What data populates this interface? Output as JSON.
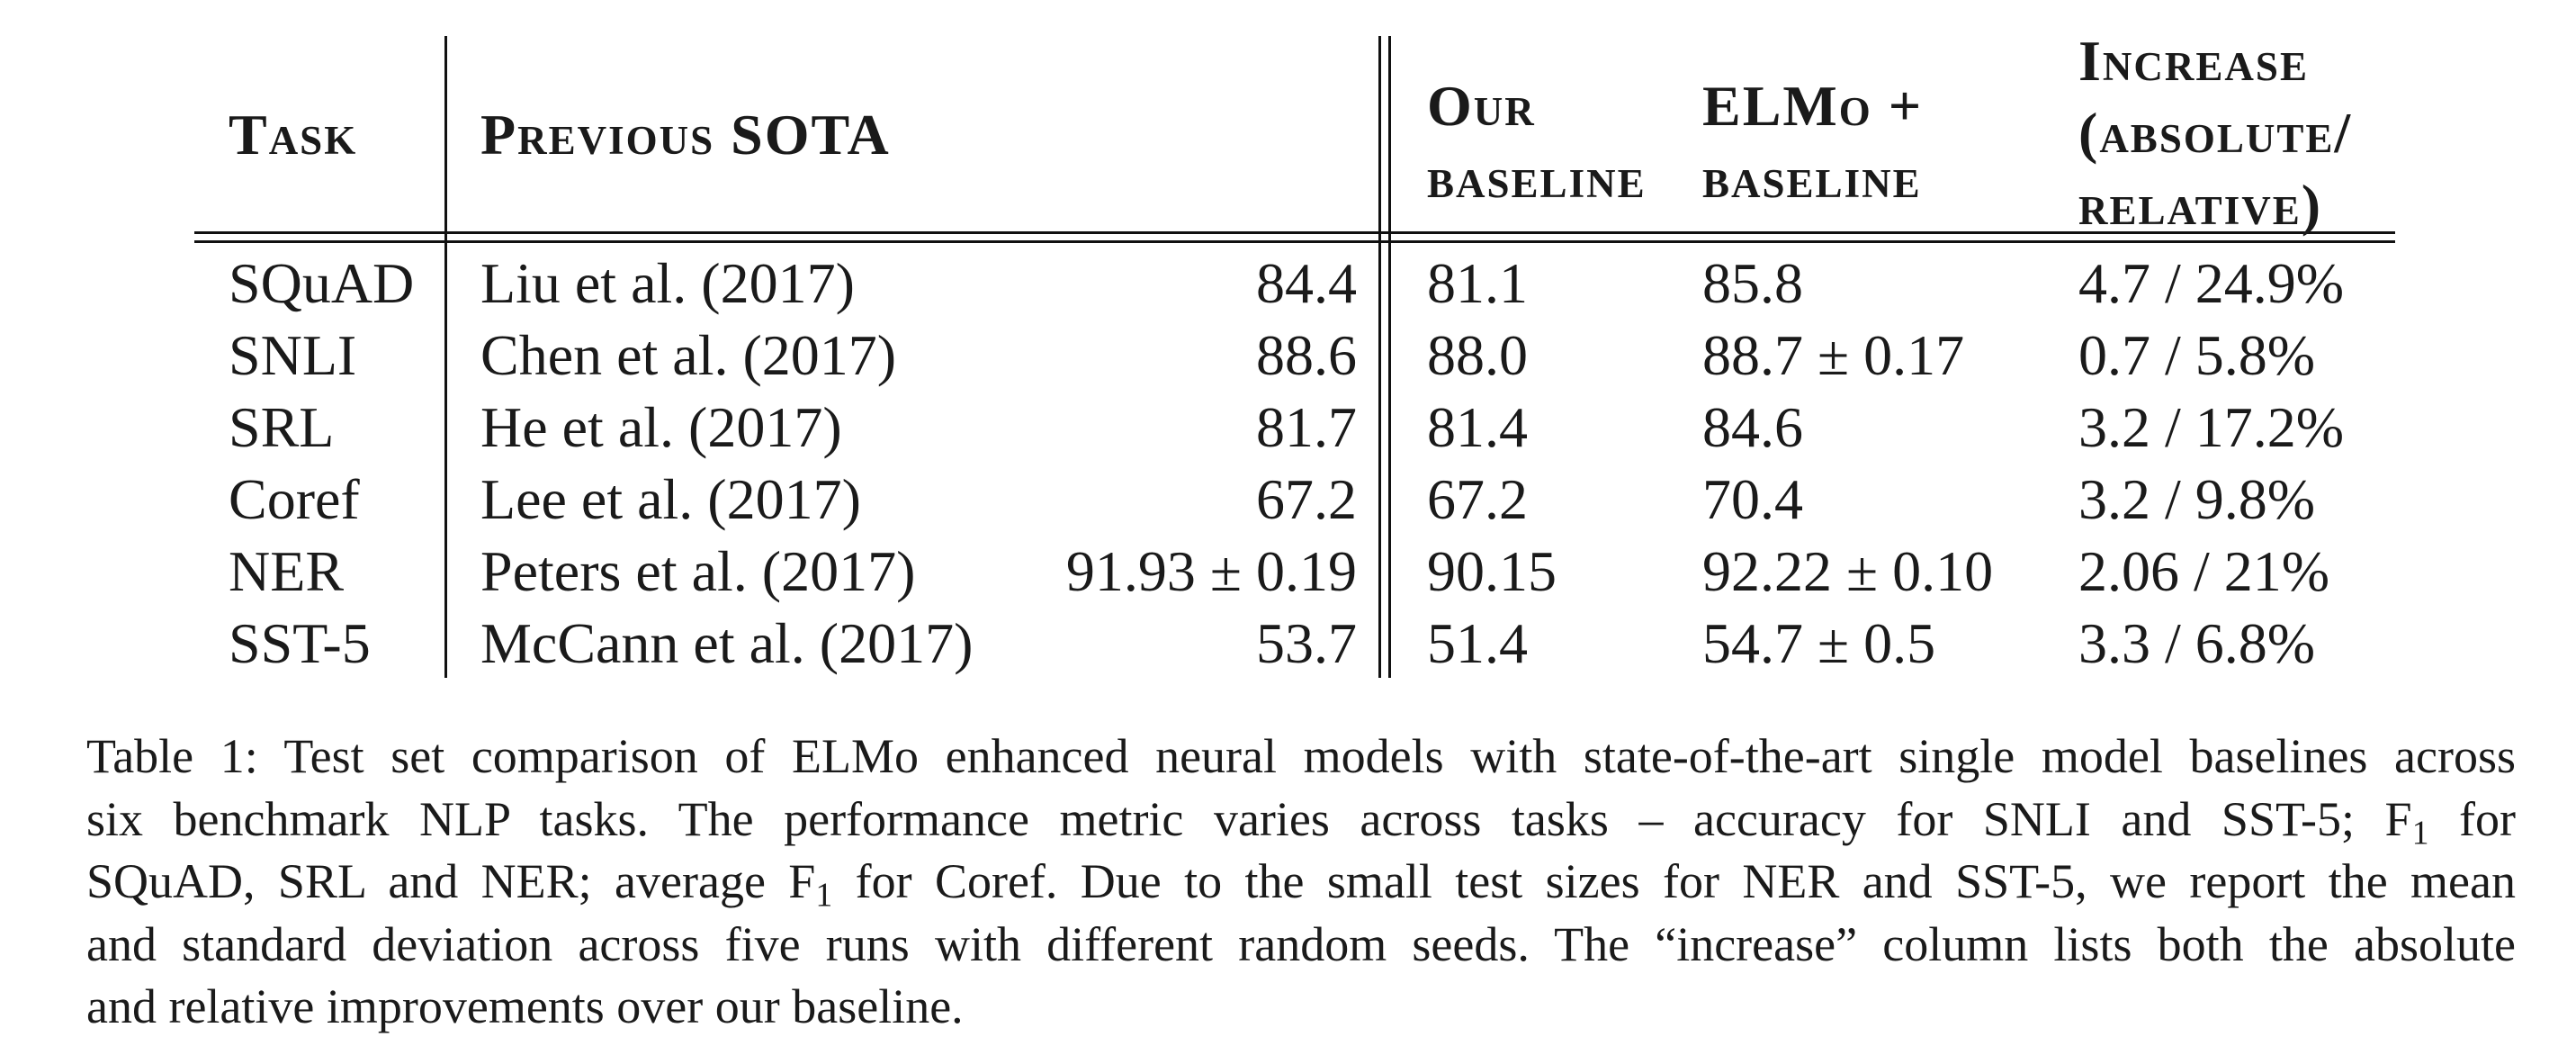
{
  "table": {
    "headers": {
      "task": "Task",
      "previous_sota": "Previous SOTA",
      "our_baseline": [
        "Our",
        "baseline"
      ],
      "elmo_baseline": [
        "ELMo +",
        "baseline"
      ],
      "increase": [
        "Increase",
        "(absolute/",
        "relative)"
      ]
    },
    "rows": [
      {
        "task": "SQuAD",
        "prev_model": "Liu et al. (2017)",
        "prev_score": "84.4",
        "baseline": "81.1",
        "elmo": "85.8",
        "increase": "4.7 / 24.9%"
      },
      {
        "task": "SNLI",
        "prev_model": "Chen et al. (2017)",
        "prev_score": "88.6",
        "baseline": "88.0",
        "elmo": "88.7 ± 0.17",
        "increase": "0.7 / 5.8%"
      },
      {
        "task": "SRL",
        "prev_model": "He et al. (2017)",
        "prev_score": "81.7",
        "baseline": "81.4",
        "elmo": "84.6",
        "increase": "3.2 / 17.2%"
      },
      {
        "task": "Coref",
        "prev_model": "Lee et al. (2017)",
        "prev_score": "67.2",
        "baseline": "67.2",
        "elmo": "70.4",
        "increase": "3.2 / 9.8%"
      },
      {
        "task": "NER",
        "prev_model": "Peters et al. (2017)",
        "prev_score": "91.93 ± 0.19",
        "baseline": "90.15",
        "elmo": "92.22 ± 0.10",
        "increase": "2.06 / 21%"
      },
      {
        "task": "SST-5",
        "prev_model": "McCann et al. (2017)",
        "prev_score": "53.7",
        "baseline": "51.4",
        "elmo": "54.7 ± 0.5",
        "increase": "3.3 / 6.8%"
      }
    ]
  },
  "caption": {
    "line1": "Table 1: Test set comparison of ELMo enhanced neural models with state-of-the-art single model baselines across",
    "line2_a": "six benchmark NLP tasks.  The performance metric varies across tasks – accuracy for SNLI and SST-5; F",
    "line2_sub": "1",
    "line2_b": " for",
    "line3_a": "SQuAD, SRL and NER; average F",
    "line3_sub": "1",
    "line3_b": " for Coref. Due to the small test sizes for NER and SST-5, we report the mean",
    "line4": "and standard deviation across five runs with different random seeds. The “increase” column lists both the absolute",
    "line5": "and relative improvements over our baseline."
  }
}
